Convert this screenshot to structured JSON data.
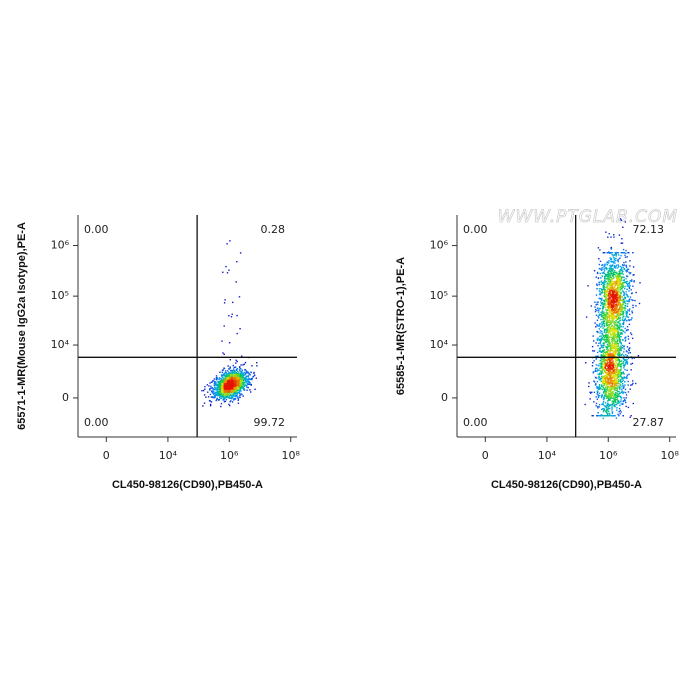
{
  "chart_data": [
    {
      "type": "quadrant-density",
      "xlabel": "CL450-98126(CD90),PB450-A",
      "ylabel": "65571-1-MR(Mouse IgG2a Isotype),PE-A",
      "xlim": [
        -88,
        160000000
      ],
      "ylim": [
        -830,
        4000000
      ],
      "xticks": [
        0,
        {
          "value": 10000,
          "label": "10⁴"
        },
        {
          "value": 1000000,
          "label": "10⁶"
        },
        {
          "value": 100000000,
          "label": "10⁸"
        }
      ],
      "yticks": [
        0,
        {
          "value": 10000,
          "label": "10⁴"
        },
        {
          "value": 100000,
          "label": "10⁵"
        },
        {
          "value": 1000000,
          "label": "10⁶"
        }
      ],
      "gate": {
        "x": 90000,
        "y": 5300
      },
      "values": [
        0,
        0.28,
        0,
        99.72
      ],
      "value_labels": [
        "0.00",
        "0.28",
        "0.00",
        "99.72"
      ]
    },
    {
      "type": "quadrant-density",
      "xlabel": "CL450-98126(CD90),PB450-A",
      "ylabel": "65585-1-MR(STRO-1),PE-A",
      "watermark": "WWW.PTGLAB.COM",
      "xlim": [
        -88,
        160000000
      ],
      "ylim": [
        -830,
        4000000
      ],
      "xticks": [
        0,
        {
          "value": 10000,
          "label": "10⁴"
        },
        {
          "value": 1000000,
          "label": "10⁶"
        },
        {
          "value": 100000000,
          "label": "10⁸"
        }
      ],
      "yticks": [
        0,
        {
          "value": 10000,
          "label": "10⁴"
        },
        {
          "value": 100000,
          "label": "10⁵"
        },
        {
          "value": 1000000,
          "label": "10⁶"
        }
      ],
      "gate": {
        "x": 87000,
        "y": 5300
      },
      "values": [
        0,
        72.13,
        0,
        27.87
      ],
      "value_labels": [
        "0.00",
        "72.13",
        "0.00",
        "27.87"
      ]
    }
  ]
}
